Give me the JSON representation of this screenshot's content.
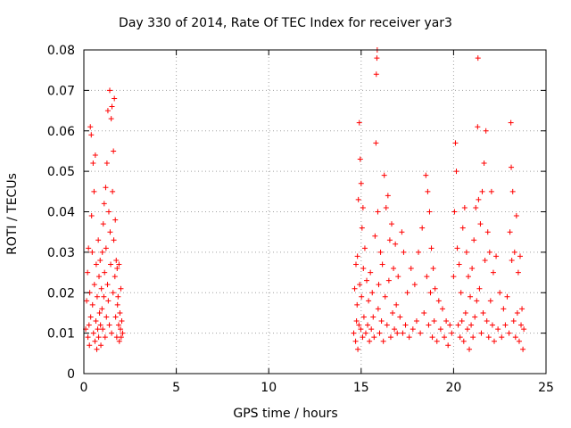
{
  "chart_data": {
    "type": "scatter",
    "title": "Day 330 of 2014, Rate Of TEC Index for receiver yar3",
    "xlabel": "GPS time / hours",
    "ylabel": "ROTI / TECUs",
    "xlim": [
      0,
      25
    ],
    "ylim": [
      0,
      0.08
    ],
    "xticks": [
      "0",
      "5",
      "10",
      "15",
      "20",
      "25"
    ],
    "yticks": [
      "0",
      "0.01",
      "0.02",
      "0.03",
      "0.04",
      "0.05",
      "0.06",
      "0.07",
      "0.08"
    ],
    "grid": true,
    "marker": "+",
    "color": "#ff0000",
    "note_on_points": "Dense cloud of thousands of points; listed points are a representative sample read from the plot.",
    "points": [
      [
        0.1,
        0.011
      ],
      [
        0.15,
        0.018
      ],
      [
        0.2,
        0.025
      ],
      [
        0.22,
        0.009
      ],
      [
        0.25,
        0.031
      ],
      [
        0.28,
        0.012
      ],
      [
        0.3,
        0.007
      ],
      [
        0.32,
        0.02
      ],
      [
        0.35,
        0.061
      ],
      [
        0.37,
        0.014
      ],
      [
        0.4,
        0.059
      ],
      [
        0.42,
        0.039
      ],
      [
        0.45,
        0.03
      ],
      [
        0.47,
        0.017
      ],
      [
        0.5,
        0.052
      ],
      [
        0.52,
        0.01
      ],
      [
        0.55,
        0.045
      ],
      [
        0.57,
        0.022
      ],
      [
        0.6,
        0.008
      ],
      [
        0.62,
        0.054
      ],
      [
        0.65,
        0.013
      ],
      [
        0.67,
        0.027
      ],
      [
        0.7,
        0.006
      ],
      [
        0.72,
        0.019
      ],
      [
        0.75,
        0.011
      ],
      [
        0.78,
        0.033
      ],
      [
        0.8,
        0.009
      ],
      [
        0.82,
        0.024
      ],
      [
        0.85,
        0.015
      ],
      [
        0.88,
        0.028
      ],
      [
        0.9,
        0.012
      ],
      [
        0.92,
        0.007
      ],
      [
        0.95,
        0.021
      ],
      [
        0.98,
        0.016
      ],
      [
        1.0,
        0.03
      ],
      [
        1.02,
        0.011
      ],
      [
        1.05,
        0.037
      ],
      [
        1.08,
        0.019
      ],
      [
        1.1,
        0.042
      ],
      [
        1.12,
        0.025
      ],
      [
        1.15,
        0.009
      ],
      [
        1.18,
        0.046
      ],
      [
        1.2,
        0.031
      ],
      [
        1.22,
        0.014
      ],
      [
        1.25,
        0.052
      ],
      [
        1.28,
        0.022
      ],
      [
        1.3,
        0.065
      ],
      [
        1.32,
        0.018
      ],
      [
        1.35,
        0.04
      ],
      [
        1.38,
        0.012
      ],
      [
        1.4,
        0.07
      ],
      [
        1.42,
        0.035
      ],
      [
        1.45,
        0.027
      ],
      [
        1.48,
        0.063
      ],
      [
        1.5,
        0.01
      ],
      [
        1.52,
        0.066
      ],
      [
        1.55,
        0.045
      ],
      [
        1.58,
        0.02
      ],
      [
        1.6,
        0.055
      ],
      [
        1.62,
        0.033
      ],
      [
        1.65,
        0.068
      ],
      [
        1.68,
        0.024
      ],
      [
        1.7,
        0.038
      ],
      [
        1.72,
        0.014
      ],
      [
        1.75,
        0.028
      ],
      [
        1.78,
        0.009
      ],
      [
        1.8,
        0.026
      ],
      [
        1.82,
        0.017
      ],
      [
        1.85,
        0.019
      ],
      [
        1.88,
        0.012
      ],
      [
        1.9,
        0.027
      ],
      [
        1.92,
        0.008
      ],
      [
        1.95,
        0.015
      ],
      [
        1.98,
        0.011
      ],
      [
        2.0,
        0.021
      ],
      [
        2.02,
        0.009
      ],
      [
        2.05,
        0.013
      ],
      [
        2.1,
        0.01
      ],
      [
        14.6,
        0.01
      ],
      [
        14.65,
        0.021
      ],
      [
        14.7,
        0.008
      ],
      [
        14.72,
        0.027
      ],
      [
        14.75,
        0.013
      ],
      [
        14.78,
        0.017
      ],
      [
        14.8,
        0.029
      ],
      [
        14.82,
        0.006
      ],
      [
        14.85,
        0.043
      ],
      [
        14.88,
        0.012
      ],
      [
        14.9,
        0.062
      ],
      [
        14.92,
        0.022
      ],
      [
        14.95,
        0.053
      ],
      [
        14.98,
        0.011
      ],
      [
        15.0,
        0.047
      ],
      [
        15.02,
        0.019
      ],
      [
        15.05,
        0.036
      ],
      [
        15.08,
        0.009
      ],
      [
        15.1,
        0.041
      ],
      [
        15.12,
        0.026
      ],
      [
        15.15,
        0.014
      ],
      [
        15.2,
        0.031
      ],
      [
        15.25,
        0.01
      ],
      [
        15.3,
        0.023
      ],
      [
        15.35,
        0.012
      ],
      [
        15.4,
        0.018
      ],
      [
        15.45,
        0.008
      ],
      [
        15.5,
        0.025
      ],
      [
        15.55,
        0.011
      ],
      [
        15.6,
        0.02
      ],
      [
        15.65,
        0.014
      ],
      [
        15.7,
        0.009
      ],
      [
        15.75,
        0.034
      ],
      [
        15.8,
        0.057
      ],
      [
        15.82,
        0.074
      ],
      [
        15.85,
        0.078
      ],
      [
        15.87,
        0.08
      ],
      [
        15.9,
        0.04
      ],
      [
        15.92,
        0.016
      ],
      [
        15.95,
        0.022
      ],
      [
        16.0,
        0.01
      ],
      [
        16.05,
        0.03
      ],
      [
        16.1,
        0.013
      ],
      [
        16.15,
        0.027
      ],
      [
        16.2,
        0.008
      ],
      [
        16.25,
        0.049
      ],
      [
        16.3,
        0.019
      ],
      [
        16.35,
        0.041
      ],
      [
        16.4,
        0.012
      ],
      [
        16.45,
        0.044
      ],
      [
        16.5,
        0.023
      ],
      [
        16.55,
        0.033
      ],
      [
        16.6,
        0.009
      ],
      [
        16.65,
        0.037
      ],
      [
        16.7,
        0.015
      ],
      [
        16.75,
        0.026
      ],
      [
        16.8,
        0.011
      ],
      [
        16.85,
        0.032
      ],
      [
        16.9,
        0.017
      ],
      [
        16.95,
        0.01
      ],
      [
        17.0,
        0.024
      ],
      [
        17.1,
        0.014
      ],
      [
        17.2,
        0.035
      ],
      [
        17.25,
        0.01
      ],
      [
        17.3,
        0.03
      ],
      [
        17.4,
        0.012
      ],
      [
        17.5,
        0.02
      ],
      [
        17.6,
        0.009
      ],
      [
        17.7,
        0.026
      ],
      [
        17.8,
        0.011
      ],
      [
        17.9,
        0.022
      ],
      [
        18.0,
        0.013
      ],
      [
        18.1,
        0.03
      ],
      [
        18.2,
        0.01
      ],
      [
        18.3,
        0.036
      ],
      [
        18.4,
        0.015
      ],
      [
        18.5,
        0.049
      ],
      [
        18.55,
        0.024
      ],
      [
        18.6,
        0.045
      ],
      [
        18.65,
        0.012
      ],
      [
        18.7,
        0.04
      ],
      [
        18.75,
        0.02
      ],
      [
        18.8,
        0.031
      ],
      [
        18.85,
        0.009
      ],
      [
        18.9,
        0.026
      ],
      [
        18.95,
        0.013
      ],
      [
        19.0,
        0.021
      ],
      [
        19.1,
        0.008
      ],
      [
        19.2,
        0.018
      ],
      [
        19.3,
        0.011
      ],
      [
        19.4,
        0.016
      ],
      [
        19.5,
        0.009
      ],
      [
        19.6,
        0.013
      ],
      [
        19.7,
        0.007
      ],
      [
        19.8,
        0.012
      ],
      [
        19.9,
        0.01
      ],
      [
        20.0,
        0.024
      ],
      [
        20.05,
        0.04
      ],
      [
        20.1,
        0.057
      ],
      [
        20.15,
        0.05
      ],
      [
        20.2,
        0.031
      ],
      [
        20.25,
        0.012
      ],
      [
        20.3,
        0.027
      ],
      [
        20.35,
        0.009
      ],
      [
        20.4,
        0.02
      ],
      [
        20.45,
        0.013
      ],
      [
        20.5,
        0.036
      ],
      [
        20.55,
        0.008
      ],
      [
        20.6,
        0.041
      ],
      [
        20.65,
        0.015
      ],
      [
        20.7,
        0.03
      ],
      [
        20.75,
        0.011
      ],
      [
        20.8,
        0.024
      ],
      [
        20.85,
        0.006
      ],
      [
        20.9,
        0.019
      ],
      [
        20.95,
        0.012
      ],
      [
        21.0,
        0.026
      ],
      [
        21.05,
        0.009
      ],
      [
        21.1,
        0.033
      ],
      [
        21.15,
        0.014
      ],
      [
        21.2,
        0.041
      ],
      [
        21.25,
        0.018
      ],
      [
        21.3,
        0.061
      ],
      [
        21.32,
        0.078
      ],
      [
        21.35,
        0.043
      ],
      [
        21.4,
        0.021
      ],
      [
        21.45,
        0.037
      ],
      [
        21.5,
        0.01
      ],
      [
        21.55,
        0.045
      ],
      [
        21.6,
        0.015
      ],
      [
        21.65,
        0.052
      ],
      [
        21.7,
        0.028
      ],
      [
        21.75,
        0.06
      ],
      [
        21.8,
        0.013
      ],
      [
        21.85,
        0.035
      ],
      [
        21.9,
        0.009
      ],
      [
        21.95,
        0.03
      ],
      [
        22.0,
        0.018
      ],
      [
        22.05,
        0.045
      ],
      [
        22.1,
        0.012
      ],
      [
        22.15,
        0.025
      ],
      [
        22.2,
        0.008
      ],
      [
        22.3,
        0.029
      ],
      [
        22.4,
        0.011
      ],
      [
        22.5,
        0.02
      ],
      [
        22.6,
        0.009
      ],
      [
        22.7,
        0.016
      ],
      [
        22.8,
        0.012
      ],
      [
        22.9,
        0.019
      ],
      [
        23.0,
        0.01
      ],
      [
        23.05,
        0.035
      ],
      [
        23.1,
        0.062
      ],
      [
        23.12,
        0.051
      ],
      [
        23.15,
        0.028
      ],
      [
        23.2,
        0.045
      ],
      [
        23.25,
        0.013
      ],
      [
        23.3,
        0.03
      ],
      [
        23.35,
        0.009
      ],
      [
        23.4,
        0.039
      ],
      [
        23.45,
        0.015
      ],
      [
        23.5,
        0.025
      ],
      [
        23.55,
        0.008
      ],
      [
        23.6,
        0.029
      ],
      [
        23.65,
        0.012
      ],
      [
        23.7,
        0.016
      ],
      [
        23.75,
        0.006
      ],
      [
        23.8,
        0.011
      ]
    ]
  }
}
